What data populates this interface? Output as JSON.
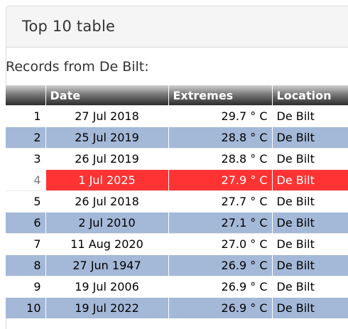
{
  "panel": {
    "title": "Top 10 table"
  },
  "subtitle": "Records from De Bilt:",
  "table": {
    "headers": [
      "",
      "Date",
      "Extremes",
      "Location"
    ],
    "rows": [
      {
        "rank": "1",
        "date": "27 Jul 2018",
        "extreme": "29.7 ° C",
        "location": "De Bilt"
      },
      {
        "rank": "2",
        "date": "25 Jul 2019",
        "extreme": "28.8 ° C",
        "location": "De Bilt"
      },
      {
        "rank": "3",
        "date": "26 Jul 2019",
        "extreme": "28.8 ° C",
        "location": "De Bilt"
      },
      {
        "rank": "4",
        "date": "1 Jul 2025",
        "extreme": "27.9 ° C",
        "location": "De Bilt"
      },
      {
        "rank": "5",
        "date": "26 Jul 2018",
        "extreme": "27.7 ° C",
        "location": "De Bilt"
      },
      {
        "rank": "6",
        "date": "2 Jul 2010",
        "extreme": "27.1 ° C",
        "location": "De Bilt"
      },
      {
        "rank": "7",
        "date": "11 Aug 2020",
        "extreme": "27.0 ° C",
        "location": "De Bilt"
      },
      {
        "rank": "8",
        "date": "27 Jun 1947",
        "extreme": "26.9 ° C",
        "location": "De Bilt"
      },
      {
        "rank": "9",
        "date": "19 Jul 2006",
        "extreme": "26.9 ° C",
        "location": "De Bilt"
      },
      {
        "rank": "10",
        "date": "19 Jul 2022",
        "extreme": "26.9 ° C",
        "location": "De Bilt"
      }
    ],
    "highlight_color": "#ff3333",
    "stripe_color": "#a4b8d8"
  }
}
